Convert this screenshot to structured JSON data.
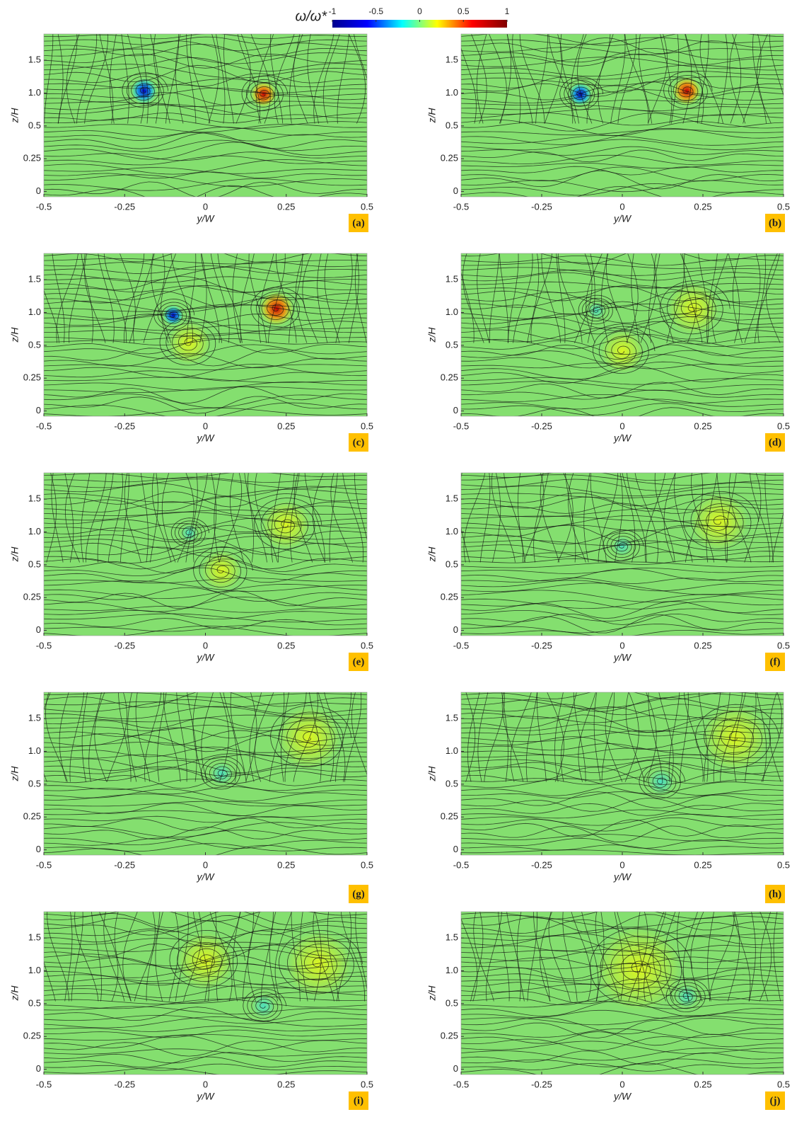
{
  "colorbar": {
    "label": "ω/ω*",
    "lim": [
      -1,
      1
    ],
    "ticks": [
      -1,
      -0.5,
      0,
      0.5,
      1
    ],
    "colormap": [
      "#00008f",
      "#0000ff",
      "#00ffff",
      "#ffff00",
      "#ff0000",
      "#800000"
    ]
  },
  "chart_data": [
    {
      "type": "streamline",
      "panel_label": "(a)",
      "xlabel": "y/W",
      "ylabel": "z/H",
      "xlim": [
        -0.5,
        0.5
      ],
      "xticks": [
        -0.5,
        -0.25,
        0,
        0.25,
        0.5
      ],
      "ylim": [
        -0.04,
        1.9
      ],
      "yticks": [
        0,
        0.25,
        0.5,
        {
          "value": 1,
          "label": "1.0"
        },
        1.5
      ],
      "yscale": "piecewise-linear"
    },
    {
      "type": "streamline",
      "panel_label": "(b)",
      "xlabel": "y/W",
      "ylabel": "z/H",
      "xlim": [
        -0.5,
        0.5
      ],
      "xticks": [
        -0.5,
        -0.25,
        0,
        0.25,
        0.5
      ],
      "ylim": [
        -0.04,
        1.9
      ],
      "yticks": [
        0,
        0.25,
        0.5,
        {
          "value": 1,
          "label": "1.0"
        },
        1.5
      ],
      "yscale": "piecewise-linear"
    },
    {
      "type": "streamline",
      "panel_label": "(c)",
      "xlabel": "y/W",
      "ylabel": "z/H",
      "xlim": [
        -0.5,
        0.5
      ],
      "xticks": [
        -0.5,
        -0.25,
        0,
        0.25,
        0.5
      ],
      "ylim": [
        -0.04,
        1.9
      ],
      "yticks": [
        0,
        0.25,
        0.5,
        {
          "value": 1,
          "label": "1.0"
        },
        1.5
      ],
      "yscale": "piecewise-linear"
    },
    {
      "type": "streamline",
      "panel_label": "(d)",
      "xlabel": "y/W",
      "ylabel": "z/H",
      "xlim": [
        -0.5,
        0.5
      ],
      "xticks": [
        -0.5,
        -0.25,
        0,
        0.25,
        0.5
      ],
      "ylim": [
        -0.04,
        1.9
      ],
      "yticks": [
        0,
        0.25,
        0.5,
        {
          "value": 1,
          "label": "1.0"
        },
        1.5
      ],
      "yscale": "piecewise-linear"
    },
    {
      "type": "streamline",
      "panel_label": "(e)",
      "xlabel": "y/W",
      "ylabel": "z/H",
      "xlim": [
        -0.5,
        0.5
      ],
      "xticks": [
        -0.5,
        -0.25,
        0,
        0.25,
        0.5
      ],
      "ylim": [
        -0.04,
        1.9
      ],
      "yticks": [
        0,
        0.25,
        0.5,
        {
          "value": 1,
          "label": "1.0"
        },
        1.5
      ],
      "yscale": "piecewise-linear"
    },
    {
      "type": "streamline",
      "panel_label": "(f)",
      "xlabel": "y/W",
      "ylabel": "z/H",
      "xlim": [
        -0.5,
        0.5
      ],
      "xticks": [
        -0.5,
        -0.25,
        0,
        0.25,
        0.5
      ],
      "ylim": [
        -0.04,
        1.9
      ],
      "yticks": [
        0,
        0.25,
        0.5,
        {
          "value": 1,
          "label": "1.0"
        },
        1.5
      ],
      "yscale": "piecewise-linear"
    },
    {
      "type": "streamline",
      "panel_label": "(g)",
      "xlabel": "y/W",
      "ylabel": "z/H",
      "xlim": [
        -0.5,
        0.5
      ],
      "xticks": [
        -0.5,
        -0.25,
        0,
        0.25,
        0.5
      ],
      "ylim": [
        -0.04,
        1.9
      ],
      "yticks": [
        0,
        0.25,
        0.5,
        {
          "value": 1,
          "label": "1.0"
        },
        1.5
      ],
      "yscale": "piecewise-linear"
    },
    {
      "type": "streamline",
      "panel_label": "(h)",
      "xlabel": "y/W",
      "ylabel": "z/H",
      "xlim": [
        -0.5,
        0.5
      ],
      "xticks": [
        -0.5,
        -0.25,
        0,
        0.25,
        0.5
      ],
      "ylim": [
        -0.04,
        1.9
      ],
      "yticks": [
        0,
        0.25,
        0.5,
        {
          "value": 1,
          "label": "1.0"
        },
        1.5
      ],
      "yscale": "piecewise-linear"
    },
    {
      "type": "streamline",
      "panel_label": "(i)",
      "xlabel": "y/W",
      "ylabel": "z/H",
      "xlim": [
        -0.5,
        0.5
      ],
      "xticks": [
        -0.5,
        -0.25,
        0,
        0.25,
        0.5
      ],
      "ylim": [
        -0.04,
        1.9
      ],
      "yticks": [
        0,
        0.25,
        0.5,
        {
          "value": 1,
          "label": "1.0"
        },
        1.5
      ],
      "yscale": "piecewise-linear"
    },
    {
      "type": "streamline",
      "panel_label": "(j)",
      "xlabel": "y/W",
      "ylabel": "z/H",
      "xlim": [
        -0.5,
        0.5
      ],
      "xticks": [
        -0.5,
        -0.25,
        0,
        0.25,
        0.5
      ],
      "ylim": [
        -0.04,
        1.9
      ],
      "yticks": [
        0,
        0.25,
        0.5,
        {
          "value": 1,
          "label": "1.0"
        },
        1.5
      ],
      "yscale": "piecewise-linear"
    }
  ]
}
